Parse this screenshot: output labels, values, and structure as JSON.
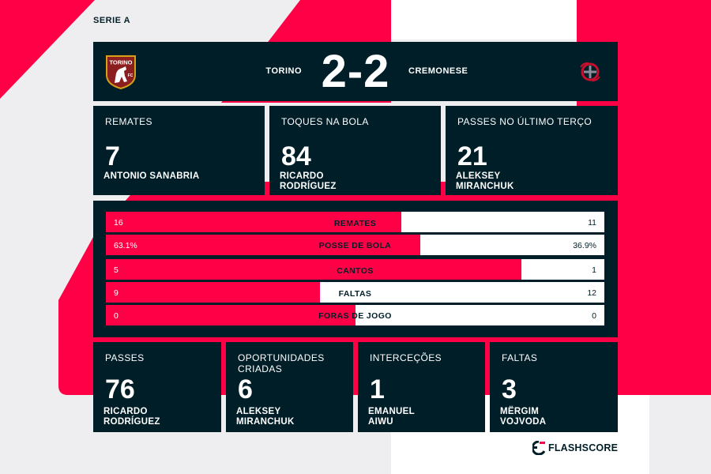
{
  "league": "SERIE A",
  "match": {
    "home_team": "TORINO",
    "away_team": "CREMONESE",
    "score": "2-2",
    "home_logo_text": "TORINO"
  },
  "top_stats": [
    {
      "title": "REMATES",
      "value": "7",
      "player": "ANTONIO SANABRIA"
    },
    {
      "title": "TOQUES NA BOLA",
      "value": "84",
      "player": "RICARDO RODRÍGUEZ"
    },
    {
      "title": "PASSES NO ÚLTIMO TERÇO",
      "value": "21",
      "player": "ALEKSEY MIRANCHUK"
    }
  ],
  "comparison": [
    {
      "label": "REMATES",
      "home": "16",
      "away": "11",
      "home_share": 0.593
    },
    {
      "label": "POSSE DE BOLA",
      "home": "63.1%",
      "away": "36.9%",
      "home_share": 0.631
    },
    {
      "label": "CANTOS",
      "home": "5",
      "away": "1",
      "home_share": 0.833
    },
    {
      "label": "FALTAS",
      "home": "9",
      "away": "12",
      "home_share": 0.429
    },
    {
      "label": "FORAS DE JOGO",
      "home": "0",
      "away": "0",
      "home_share": 0.5
    }
  ],
  "bottom_stats": [
    {
      "title": "PASSES",
      "value": "76",
      "player": "RICARDO RODRÍGUEZ"
    },
    {
      "title": "OPORTUNIDADES CRIADAS",
      "value": "6",
      "player": "ALEKSEY MIRANCHUK"
    },
    {
      "title": "INTERCEÇÕES",
      "value": "1",
      "player": "EMANUEL AIWU"
    },
    {
      "title": "FALTAS",
      "value": "3",
      "player": "MËRGIM VOJVODA"
    }
  ],
  "brand": {
    "name": "FLASHSCORE"
  },
  "colors": {
    "accent": "#ff0046",
    "panel": "#001e28",
    "background": "#eeeef0",
    "torino": "#8b1e1e"
  },
  "icons": {
    "home_logo": "torino-crest-icon",
    "away_logo": "cremonese-crest-icon",
    "brand": "flashscore-logo-icon"
  }
}
